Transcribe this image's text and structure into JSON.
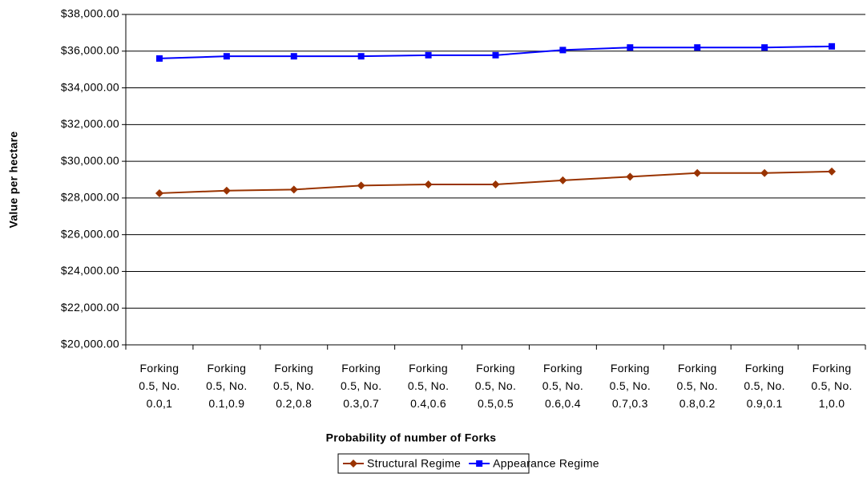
{
  "chart_data": {
    "type": "line",
    "x_label": "Probability of number of Forks",
    "y_label": "Value per hectare",
    "categories": [
      "Forking 0.5, No. 0.0,1",
      "Forking 0.5, No. 0.1,0.9",
      "Forking 0.5, No. 0.2,0.8",
      "Forking 0.5, No. 0.3,0.7",
      "Forking 0.5, No. 0.4,0.6",
      "Forking 0.5, No. 0.5,0.5",
      "Forking 0.5, No. 0.6,0.4",
      "Forking 0.5, No. 0.7,0.3",
      "Forking 0.5, No. 0.8,0.2",
      "Forking 0.5, No. 0.9,0.1",
      "Forking 0.5, No. 1,0.0"
    ],
    "series": [
      {
        "name": "Structural Regime",
        "color": "#993300",
        "marker": "diamond",
        "values": [
          28260,
          28400,
          28460,
          28680,
          28740,
          28740,
          28960,
          29160,
          29360,
          29360,
          29440
        ]
      },
      {
        "name": "Appearance Regime",
        "color": "#0000ff",
        "marker": "square",
        "values": [
          35600,
          35720,
          35720,
          35720,
          35780,
          35780,
          36060,
          36200,
          36200,
          36200,
          36260
        ]
      }
    ],
    "ylim": [
      20000,
      38000
    ],
    "yticks": [
      {
        "value": 20000,
        "label": "$20,000.00"
      },
      {
        "value": 22000,
        "label": "$22,000.00"
      },
      {
        "value": 24000,
        "label": "$24,000.00"
      },
      {
        "value": 26000,
        "label": "$26,000.00"
      },
      {
        "value": 28000,
        "label": "$28,000.00"
      },
      {
        "value": 30000,
        "label": "$30,000.00"
      },
      {
        "value": 32000,
        "label": "$32,000.00"
      },
      {
        "value": 34000,
        "label": "$34,000.00"
      },
      {
        "value": 36000,
        "label": "$36,000.00"
      },
      {
        "value": 38000,
        "label": "$38,000.00"
      }
    ],
    "grid": true,
    "legend": "bottom"
  }
}
